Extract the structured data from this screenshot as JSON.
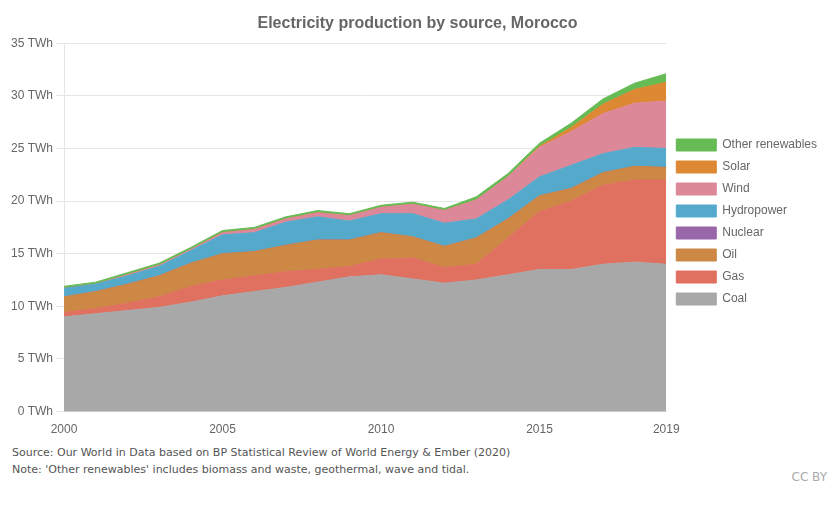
{
  "chart_data": {
    "type": "area",
    "stacked": true,
    "title": "Electricity production by source, Morocco",
    "x": [
      2000,
      2001,
      2002,
      2003,
      2004,
      2005,
      2006,
      2007,
      2008,
      2009,
      2010,
      2011,
      2012,
      2013,
      2014,
      2015,
      2016,
      2017,
      2018,
      2019
    ],
    "series": [
      {
        "name": "Coal",
        "color": "#a8a8a8",
        "values": [
          9.0,
          9.3,
          9.6,
          9.9,
          10.4,
          11.0,
          11.4,
          11.8,
          12.3,
          12.8,
          13.0,
          12.6,
          12.2,
          12.5,
          13.0,
          13.5,
          13.5,
          14.0,
          14.2,
          14.0
        ]
      },
      {
        "name": "Gas",
        "color": "#e07060",
        "values": [
          0.4,
          0.5,
          0.7,
          1.0,
          1.5,
          1.5,
          1.5,
          1.5,
          1.2,
          1.0,
          1.5,
          2.0,
          1.5,
          1.5,
          3.5,
          5.5,
          6.5,
          7.5,
          7.8,
          8.0
        ]
      },
      {
        "name": "Oil",
        "color": "#cc8844",
        "values": [
          1.5,
          1.6,
          1.8,
          2.0,
          2.2,
          2.5,
          2.3,
          2.5,
          2.8,
          2.5,
          2.5,
          2.0,
          2.0,
          2.5,
          1.8,
          1.5,
          1.2,
          1.2,
          1.3,
          1.2
        ]
      },
      {
        "name": "Nuclear",
        "color": "#9966aa",
        "values": [
          0.0,
          0.0,
          0.0,
          0.0,
          0.0,
          0.0,
          0.0,
          0.0,
          0.0,
          0.0,
          0.0,
          0.0,
          0.0,
          0.0,
          0.0,
          0.0,
          0.0,
          0.0,
          0.0,
          0.0
        ]
      },
      {
        "name": "Hydropower",
        "color": "#55aacc",
        "values": [
          0.8,
          0.7,
          0.8,
          0.9,
          1.2,
          1.8,
          1.8,
          2.2,
          2.2,
          1.8,
          1.8,
          2.2,
          2.2,
          1.8,
          1.8,
          1.8,
          2.2,
          1.8,
          1.8,
          1.8
        ]
      },
      {
        "name": "Wind",
        "color": "#dd8899",
        "values": [
          0.0,
          0.0,
          0.1,
          0.1,
          0.1,
          0.2,
          0.3,
          0.3,
          0.4,
          0.5,
          0.6,
          0.9,
          1.2,
          1.8,
          2.2,
          2.8,
          3.2,
          3.8,
          4.2,
          4.5
        ]
      },
      {
        "name": "Solar",
        "color": "#dd8833",
        "values": [
          0.0,
          0.0,
          0.0,
          0.0,
          0.0,
          0.0,
          0.0,
          0.0,
          0.0,
          0.0,
          0.0,
          0.0,
          0.0,
          0.0,
          0.0,
          0.1,
          0.4,
          0.9,
          1.3,
          1.8
        ]
      },
      {
        "name": "Other renewables",
        "color": "#66bb55",
        "values": [
          0.2,
          0.2,
          0.2,
          0.2,
          0.2,
          0.2,
          0.2,
          0.2,
          0.2,
          0.2,
          0.2,
          0.2,
          0.2,
          0.3,
          0.3,
          0.3,
          0.4,
          0.5,
          0.6,
          0.8
        ]
      }
    ],
    "xlim": [
      2000,
      2019
    ],
    "xticks": [
      2000,
      2005,
      2010,
      2015,
      2019
    ],
    "ylim": [
      0,
      35
    ],
    "yticks": [
      {
        "value": 0,
        "label": "0 TWh"
      },
      {
        "value": 5,
        "label": "5 TWh"
      },
      {
        "value": 10,
        "label": "10 TWh"
      },
      {
        "value": 15,
        "label": "15 TWh"
      },
      {
        "value": 20,
        "label": "20 TWh"
      },
      {
        "value": 25,
        "label": "25 TWh"
      },
      {
        "value": 30,
        "label": "30 TWh"
      },
      {
        "value": 35,
        "label": "35 TWh"
      }
    ],
    "grid": true,
    "legend": "right",
    "annotations": [
      "Source: Our World in Data based on BP Statistical Review of World Energy & Ember (2020)",
      "Note: 'Other renewables' includes biomass and waste, geothermal, wave and tidal.",
      "CC BY"
    ]
  }
}
